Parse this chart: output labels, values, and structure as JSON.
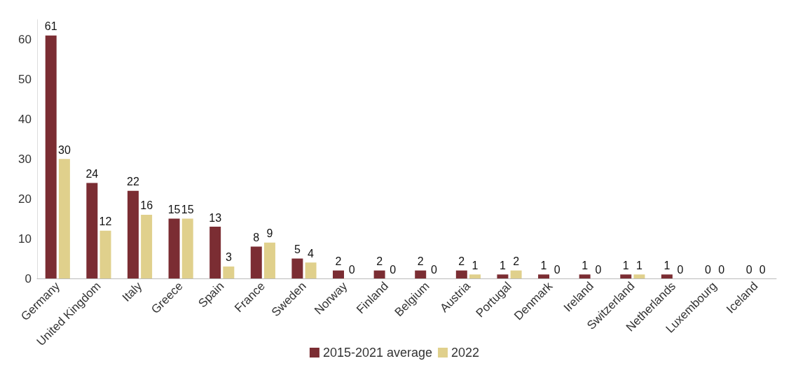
{
  "chart_data": {
    "type": "bar",
    "categories": [
      "Germany",
      "United Kingdom",
      "Italy",
      "Greece",
      "Spain",
      "France",
      "Sweden",
      "Norway",
      "Finland",
      "Belgium",
      "Austria",
      "Portugal",
      "Denmark",
      "Ireland",
      "Switzerland",
      "Netherlands",
      "Luxembourg",
      "Iceland"
    ],
    "series": [
      {
        "name": "2015-2021 average",
        "color": "#7b2d33",
        "values": [
          61,
          24,
          22,
          15,
          13,
          8,
          5,
          2,
          2,
          2,
          2,
          1,
          1,
          1,
          1,
          1,
          0,
          0
        ]
      },
      {
        "name": "2022",
        "color": "#e0d08c",
        "values": [
          30,
          12,
          16,
          15,
          3,
          9,
          4,
          0,
          0,
          0,
          1,
          2,
          0,
          0,
          1,
          0,
          0,
          0
        ]
      }
    ],
    "ylim": [
      0,
      65
    ],
    "yticks": [
      0,
      10,
      20,
      30,
      40,
      50,
      60
    ],
    "grid": false,
    "legend": "bottom",
    "data_labels": true
  }
}
